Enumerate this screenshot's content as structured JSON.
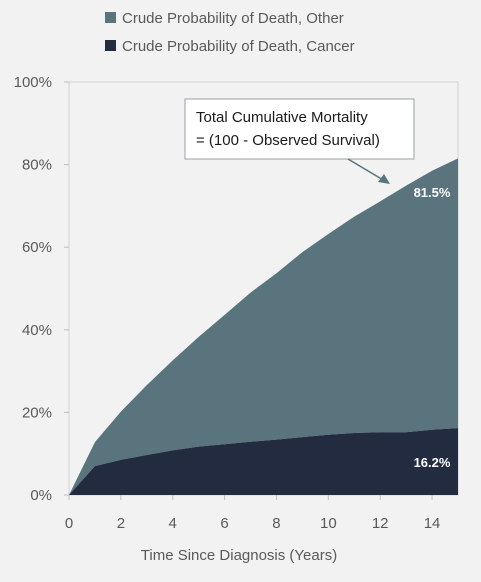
{
  "chart_data": {
    "type": "area",
    "stacked": true,
    "xlabel": "Time Since Diagnosis (Years)",
    "ylabel": "",
    "xlim": [
      0,
      15
    ],
    "ylim": [
      0,
      100
    ],
    "x_ticks": [
      0,
      2,
      4,
      6,
      8,
      10,
      12,
      14
    ],
    "x_tick_labels": [
      "0",
      "2",
      "4",
      "6",
      "8",
      "10",
      "12",
      "14"
    ],
    "y_ticks": [
      0,
      20,
      40,
      60,
      80,
      100
    ],
    "y_tick_labels": [
      "0%",
      "20%",
      "40%",
      "60%",
      "80%",
      "100%"
    ],
    "grid": false,
    "legend_position": "top",
    "x": [
      0,
      1,
      2,
      3,
      4,
      5,
      6,
      7,
      8,
      9,
      10,
      11,
      12,
      13,
      14,
      15
    ],
    "series": [
      {
        "name": "Crude Probability of Death, Cancer",
        "color": "#222b3f",
        "values": [
          0,
          7.0,
          8.5,
          9.7,
          10.8,
          11.7,
          12.3,
          12.9,
          13.4,
          14.0,
          14.6,
          15.0,
          15.2,
          15.2,
          15.8,
          16.2
        ]
      },
      {
        "name": "Crude Probability of Death, Other",
        "color": "#5a747e",
        "values": [
          0,
          5.8,
          11.7,
          16.9,
          21.8,
          26.6,
          31.3,
          36.1,
          40.3,
          44.8,
          48.6,
          52.4,
          55.9,
          59.7,
          62.7,
          65.3
        ]
      }
    ],
    "annotations": {
      "callout": {
        "line1": "Total Cumulative Mortality",
        "line2": "= (100 - Observed Survival)"
      },
      "total_end_label": "81.5%",
      "cancer_end_label": "16.2%"
    }
  }
}
